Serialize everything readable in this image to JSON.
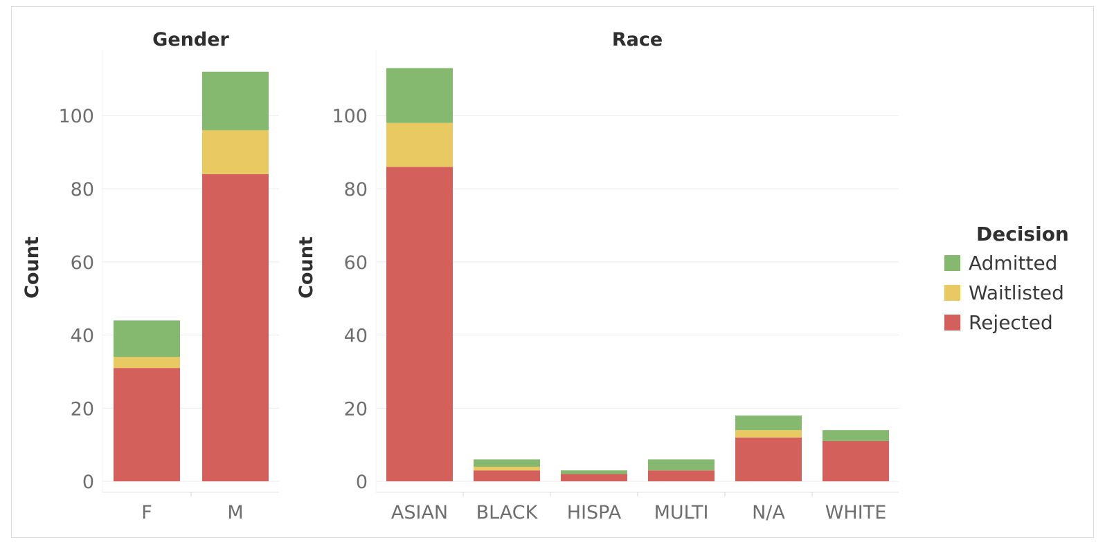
{
  "legend": {
    "title": "Decision",
    "items": [
      {
        "label": "Admitted",
        "color": "#86b970"
      },
      {
        "label": "Waitlisted",
        "color": "#e8c962"
      },
      {
        "label": "Rejected",
        "color": "#d4605c"
      }
    ]
  },
  "chart_data": [
    {
      "type": "bar",
      "stacked": true,
      "title": "Gender",
      "ylabel": "Count",
      "xlabel": "",
      "categories": [
        "F",
        "M"
      ],
      "yticks": [
        0,
        20,
        40,
        60,
        80,
        100
      ],
      "ylim": [
        -3,
        118
      ],
      "grid": true,
      "series": [
        {
          "name": "Rejected",
          "values": [
            31,
            84
          ]
        },
        {
          "name": "Waitlisted",
          "values": [
            3,
            12
          ]
        },
        {
          "name": "Admitted",
          "values": [
            10,
            16
          ]
        }
      ]
    },
    {
      "type": "bar",
      "stacked": true,
      "title": "Race",
      "ylabel": "Count",
      "xlabel": "",
      "categories": [
        "ASIAN",
        "BLACK",
        "HISPA",
        "MULTI",
        "N/A",
        "WHITE"
      ],
      "yticks": [
        0,
        20,
        40,
        60,
        80,
        100
      ],
      "ylim": [
        -3,
        118
      ],
      "grid": true,
      "series": [
        {
          "name": "Rejected",
          "values": [
            86,
            3,
            2,
            3,
            12,
            11
          ]
        },
        {
          "name": "Waitlisted",
          "values": [
            12,
            1,
            0,
            0,
            2,
            0
          ]
        },
        {
          "name": "Admitted",
          "values": [
            15,
            2,
            1,
            3,
            4,
            3
          ]
        }
      ]
    }
  ]
}
